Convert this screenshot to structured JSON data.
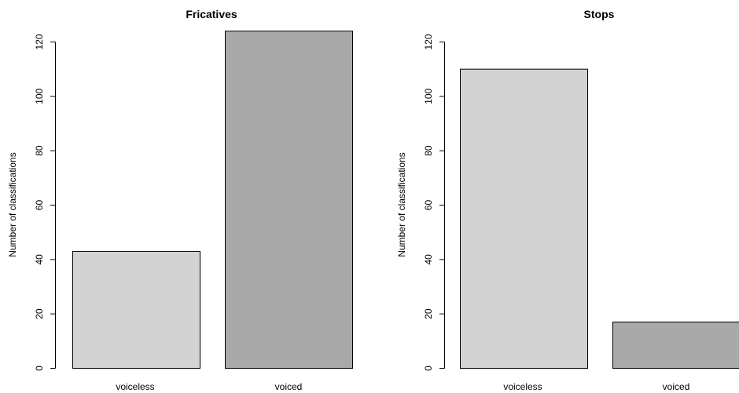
{
  "chart_data": [
    {
      "type": "bar",
      "title": "Fricatives",
      "ylabel": "Number of classifications",
      "xlabel": "",
      "ylim": [
        0,
        120
      ],
      "yticks": [
        0,
        20,
        40,
        60,
        80,
        100,
        120
      ],
      "categories": [
        "voiceless",
        "voiced"
      ],
      "values": [
        43,
        124
      ],
      "colors": [
        "#d3d3d3",
        "#a9a9a9"
      ],
      "grid": false
    },
    {
      "type": "bar",
      "title": "Stops",
      "ylabel": "Number of classifications",
      "xlabel": "",
      "ylim": [
        0,
        120
      ],
      "yticks": [
        0,
        20,
        40,
        60,
        80,
        100,
        120
      ],
      "categories": [
        "voiceless",
        "voiced"
      ],
      "values": [
        110,
        17
      ],
      "colors": [
        "#d3d3d3",
        "#a9a9a9"
      ],
      "grid": false
    }
  ]
}
